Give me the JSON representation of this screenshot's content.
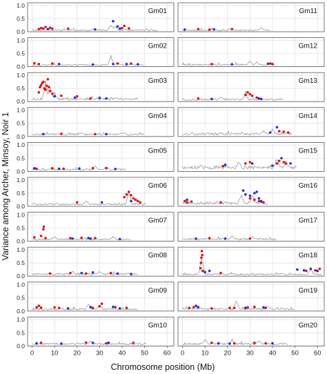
{
  "figure": {
    "ylabel": "Variance among Archer, Minsoy, Noir 1",
    "xlabel": "Chromosome position (Mb)"
  },
  "colors": {
    "baseline": "#8c8c8c",
    "red": "#e01010",
    "blue": "#1f2fd8",
    "grid": "#d9d9d9",
    "frame": "#555555"
  },
  "chart_data": {
    "type": "scatter",
    "x_ticks": [
      0,
      10,
      20,
      30,
      40,
      50,
      60
    ],
    "y_ticks": [
      0.0,
      0.5,
      1.0
    ],
    "y_tick_labels": [
      "0.0",
      "0.5",
      "1.0"
    ],
    "xlim": [
      -2,
      63
    ],
    "ylim": [
      0,
      1.1
    ],
    "grid": true,
    "panels": [
      {
        "label": "Gm01",
        "length": 56,
        "base": 0.06,
        "red": [
          [
            3,
            0.1
          ],
          [
            4,
            0.14
          ],
          [
            5,
            0.12
          ],
          [
            6,
            0.18
          ],
          [
            8,
            0.15
          ],
          [
            9,
            0.12
          ],
          [
            16,
            0.12
          ],
          [
            40,
            0.14
          ],
          [
            41,
            0.22
          ],
          [
            43,
            0.13
          ]
        ],
        "blue": [
          [
            7,
            0.1
          ],
          [
            28,
            0.09
          ],
          [
            36,
            0.4
          ],
          [
            38,
            0.2
          ],
          [
            39,
            0.12
          ]
        ],
        "peaks": [
          [
            35,
            0.35
          ],
          [
            37,
            0.25
          ]
        ]
      },
      {
        "label": "Gm02",
        "length": 50,
        "base": 0.06,
        "red": [
          [
            1,
            0.13
          ],
          [
            3,
            0.1
          ],
          [
            9,
            0.12
          ],
          [
            38,
            0.12
          ],
          [
            44,
            0.12
          ]
        ],
        "blue": [
          [
            12,
            0.1
          ],
          [
            27,
            0.08
          ],
          [
            36,
            0.1
          ],
          [
            42,
            0.1
          ],
          [
            47,
            0.09
          ]
        ],
        "peaks": [
          [
            35,
            0.5
          ],
          [
            38,
            0.2
          ]
        ]
      },
      {
        "label": "Gm03",
        "length": 47,
        "base": 0.1,
        "red": [
          [
            3,
            0.35
          ],
          [
            3.5,
            0.55
          ],
          [
            4,
            0.62
          ],
          [
            4.5,
            0.7
          ],
          [
            5,
            0.75
          ],
          [
            5.5,
            0.5
          ],
          [
            6,
            0.45
          ],
          [
            6.5,
            0.6
          ],
          [
            7,
            0.85
          ],
          [
            7.5,
            0.55
          ],
          [
            8,
            0.4
          ],
          [
            9,
            0.3
          ],
          [
            13,
            0.22
          ],
          [
            20,
            0.2
          ],
          [
            26,
            0.12
          ]
        ],
        "blue": [
          [
            10,
            0.2
          ],
          [
            19,
            0.15
          ],
          [
            30,
            0.14
          ],
          [
            33,
            0.12
          ]
        ],
        "peaks": [
          [
            6,
            0.9
          ],
          [
            8,
            0.7
          ],
          [
            10,
            0.4
          ]
        ]
      },
      {
        "label": "Gm04",
        "length": 50,
        "base": 0.08,
        "red": [
          [
            13,
            0.1
          ],
          [
            28,
            0.09
          ]
        ],
        "blue": [
          [
            5,
            0.09
          ],
          [
            33,
            0.09
          ]
        ],
        "peaks": [
          [
            22,
            0.15
          ],
          [
            40,
            0.14
          ]
        ]
      },
      {
        "label": "Gm05",
        "length": 42,
        "base": 0.07,
        "red": [
          [
            2,
            0.1
          ],
          [
            9,
            0.12
          ],
          [
            14,
            0.1
          ],
          [
            27,
            0.12
          ],
          [
            33,
            0.12
          ]
        ],
        "blue": [
          [
            1,
            0.12
          ],
          [
            12,
            0.1
          ],
          [
            21,
            0.11
          ],
          [
            37,
            0.09
          ]
        ],
        "peaks": [
          [
            28,
            0.25
          ],
          [
            33,
            0.22
          ]
        ]
      },
      {
        "label": "Gm06",
        "length": 51,
        "base": 0.08,
        "red": [
          [
            20,
            0.15
          ],
          [
            41,
            0.35
          ],
          [
            42,
            0.45
          ],
          [
            43,
            0.55
          ],
          [
            44,
            0.42
          ],
          [
            45,
            0.3
          ],
          [
            46,
            0.25
          ],
          [
            47,
            0.2
          ],
          [
            48,
            0.15
          ]
        ],
        "blue": [
          [
            31,
            0.15
          ],
          [
            44,
            0.2
          ]
        ],
        "peaks": [
          [
            24,
            0.22
          ],
          [
            43,
            0.6
          ]
        ]
      },
      {
        "label": "Gm07",
        "length": 44,
        "base": 0.07,
        "red": [
          [
            1,
            0.15
          ],
          [
            4,
            0.2
          ],
          [
            5,
            0.45
          ],
          [
            5.2,
            0.55
          ],
          [
            6,
            0.12
          ],
          [
            17,
            0.12
          ],
          [
            22,
            0.13
          ],
          [
            28,
            0.12
          ]
        ],
        "blue": [
          [
            18,
            0.1
          ],
          [
            25,
            0.12
          ],
          [
            26,
            0.1
          ],
          [
            39,
            0.08
          ]
        ],
        "peaks": [
          [
            10,
            0.2
          ],
          [
            36,
            0.2
          ]
        ]
      },
      {
        "label": "Gm08",
        "length": 47,
        "base": 0.08,
        "red": [
          [
            8,
            0.1
          ],
          [
            17,
            0.12
          ],
          [
            24,
            0.1
          ],
          [
            35,
            0.12
          ]
        ],
        "blue": [
          [
            22,
            0.12
          ],
          [
            27,
            0.14
          ],
          [
            38,
            0.1
          ],
          [
            44,
            0.08
          ]
        ],
        "peaks": [
          [
            18,
            0.2
          ],
          [
            30,
            0.2
          ]
        ]
      },
      {
        "label": "Gm09",
        "length": 47,
        "base": 0.07,
        "red": [
          [
            2,
            0.14
          ],
          [
            3,
            0.2
          ],
          [
            4,
            0.13
          ],
          [
            10,
            0.14
          ],
          [
            12,
            0.12
          ],
          [
            27,
            0.12
          ],
          [
            30,
            0.18
          ],
          [
            31,
            0.28
          ],
          [
            37,
            0.15
          ],
          [
            42,
            0.12
          ]
        ],
        "blue": [
          [
            16,
            0.1
          ],
          [
            26,
            0.15
          ],
          [
            36,
            0.16
          ],
          [
            39,
            0.1
          ]
        ],
        "peaks": [
          [
            25,
            0.35
          ],
          [
            30,
            0.3
          ]
        ]
      },
      {
        "label": "Gm10",
        "length": 51,
        "base": 0.08,
        "red": [
          [
            4,
            0.12
          ],
          [
            24,
            0.13
          ],
          [
            33,
            0.1
          ],
          [
            45,
            0.12
          ]
        ],
        "blue": [
          [
            2,
            0.1
          ],
          [
            13,
            0.09
          ],
          [
            27,
            0.12
          ],
          [
            34,
            0.12
          ]
        ],
        "peaks": [
          [
            26,
            0.22
          ]
        ]
      },
      {
        "label": "Gm11",
        "length": 39,
        "base": 0.06,
        "red": [
          [
            7,
            0.1
          ],
          [
            12,
            0.08
          ],
          [
            22,
            0.1
          ]
        ],
        "blue": [
          [
            1,
            0.08
          ],
          [
            14,
            0.09
          ]
        ],
        "peaks": [
          [
            35,
            0.15
          ]
        ]
      },
      {
        "label": "Gm12",
        "length": 41,
        "base": 0.07,
        "red": [
          [
            13,
            0.1
          ],
          [
            39,
            0.12
          ],
          [
            40,
            0.1
          ]
        ],
        "blue": [
          [
            22,
            0.09
          ],
          [
            38,
            0.11
          ]
        ],
        "peaks": [
          [
            30,
            0.25
          ],
          [
            33,
            0.2
          ]
        ]
      },
      {
        "label": "Gm13",
        "length": 45,
        "base": 0.08,
        "red": [
          [
            7,
            0.12
          ],
          [
            28,
            0.25
          ],
          [
            29,
            0.35
          ],
          [
            30,
            0.28
          ],
          [
            31,
            0.22
          ],
          [
            33,
            0.15
          ]
        ],
        "blue": [
          [
            13,
            0.1
          ],
          [
            34,
            0.12
          ],
          [
            35,
            0.1
          ]
        ],
        "peaks": [
          [
            28,
            0.4
          ],
          [
            17,
            0.2
          ]
        ]
      },
      {
        "label": "Gm14",
        "length": 49,
        "base": 0.1,
        "red": [
          [
            43,
            0.2
          ],
          [
            45,
            0.18
          ],
          [
            47,
            0.15
          ]
        ],
        "blue": [
          [
            39,
            0.15
          ],
          [
            42,
            0.35
          ]
        ],
        "peaks": [
          [
            36,
            0.25
          ],
          [
            40,
            0.3
          ]
        ]
      },
      {
        "label": "Gm15",
        "length": 51,
        "base": 0.15,
        "red": [
          [
            18,
            0.2
          ],
          [
            28,
            0.3
          ],
          [
            30,
            0.35
          ],
          [
            42,
            0.3
          ],
          [
            43,
            0.4
          ],
          [
            45,
            0.35
          ],
          [
            46,
            0.3
          ]
        ],
        "blue": [
          [
            19,
            0.25
          ],
          [
            31,
            0.3
          ],
          [
            40,
            0.22
          ],
          [
            44,
            0.5
          ],
          [
            48,
            0.3
          ]
        ],
        "peaks": [
          [
            25,
            0.4
          ],
          [
            42,
            0.55
          ],
          [
            46,
            0.45
          ]
        ]
      },
      {
        "label": "Gm16",
        "length": 38,
        "base": 0.12,
        "red": [
          [
            1,
            0.2
          ],
          [
            2,
            0.15
          ],
          [
            4,
            0.18
          ],
          [
            17,
            0.15
          ],
          [
            30,
            0.3
          ],
          [
            32,
            0.25
          ],
          [
            34,
            0.2
          ],
          [
            35,
            0.18
          ],
          [
            36,
            0.15
          ]
        ],
        "blue": [
          [
            2,
            0.25
          ],
          [
            27,
            0.6
          ],
          [
            28,
            0.45
          ],
          [
            30,
            0.4
          ],
          [
            32,
            0.5
          ],
          [
            33,
            0.55
          ],
          [
            34,
            0.3
          ],
          [
            35,
            0.2
          ]
        ],
        "peaks": [
          [
            26,
            0.55
          ],
          [
            31,
            0.45
          ]
        ]
      },
      {
        "label": "Gm17",
        "length": 42,
        "base": 0.08,
        "red": [
          [
            12,
            0.12
          ],
          [
            30,
            0.1
          ]
        ],
        "blue": [
          [
            6,
            0.1
          ],
          [
            19,
            0.1
          ]
        ],
        "peaks": [
          [
            22,
            0.25
          ],
          [
            31,
            0.2
          ]
        ]
      },
      {
        "label": "Gm18",
        "length": 62,
        "base": 0.07,
        "red": [
          [
            8,
            0.3
          ],
          [
            8.2,
            0.5
          ],
          [
            8.4,
            0.7
          ],
          [
            8.6,
            0.95
          ],
          [
            8.8,
            0.8
          ],
          [
            9,
            0.2
          ],
          [
            17,
            0.12
          ],
          [
            55,
            0.2
          ],
          [
            59,
            0.22
          ],
          [
            61,
            0.28
          ]
        ],
        "blue": [
          [
            10,
            0.15
          ],
          [
            12,
            0.2
          ],
          [
            51,
            0.25
          ],
          [
            54,
            0.22
          ],
          [
            57,
            0.28
          ],
          [
            60,
            0.2
          ]
        ],
        "peaks": [
          [
            8.5,
            0.9
          ],
          [
            57,
            0.3
          ]
        ]
      },
      {
        "label": "Gm19",
        "length": 50,
        "base": 0.08,
        "red": [
          [
            3,
            0.12
          ],
          [
            5,
            0.15
          ],
          [
            13,
            0.1
          ],
          [
            21,
            0.12
          ],
          [
            23,
            0.12
          ],
          [
            29,
            0.14
          ],
          [
            32,
            0.16
          ],
          [
            37,
            0.12
          ]
        ],
        "blue": [
          [
            6,
            0.2
          ],
          [
            7,
            0.15
          ],
          [
            28,
            0.12
          ],
          [
            36,
            0.14
          ]
        ],
        "peaks": [
          [
            24,
            0.45
          ],
          [
            38,
            0.2
          ]
        ]
      },
      {
        "label": "Gm20",
        "length": 47,
        "base": 0.08,
        "red": [
          [
            13,
            0.12
          ],
          [
            23,
            0.1
          ],
          [
            32,
            0.12
          ],
          [
            37,
            0.1
          ]
        ],
        "blue": [
          [
            16,
            0.1
          ],
          [
            21,
            0.09
          ],
          [
            40,
            0.1
          ]
        ],
        "peaks": [
          [
            10,
            0.3
          ],
          [
            22,
            0.28
          ],
          [
            34,
            0.22
          ]
        ]
      }
    ]
  }
}
